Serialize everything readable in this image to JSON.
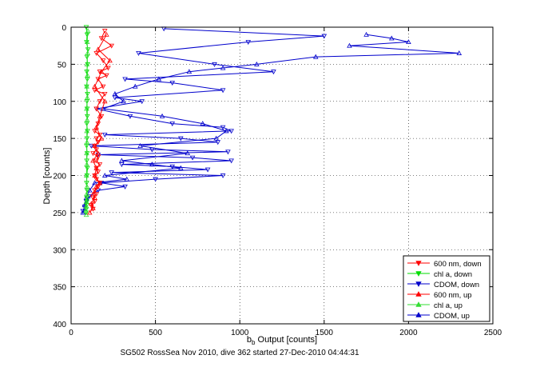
{
  "chart_data": {
    "type": "scatter",
    "xlabel_main": "b",
    "xlabel_sub": "b",
    "xlabel_rest": " Output [counts]",
    "ylabel": "Depth [counts]",
    "xlim": [
      0,
      2500
    ],
    "ylim": [
      0,
      400
    ],
    "y_reversed": true,
    "grid": "dotted",
    "legend_position": "bottom-right",
    "x_ticks": [
      "0",
      "500",
      "1000",
      "1500",
      "2000",
      "2500"
    ],
    "y_ticks": [
      "0",
      "50",
      "100",
      "150",
      "200",
      "250",
      "300",
      "350",
      "400"
    ],
    "footer": "SG502 RossSea Nov 2010, dive 362 started 27-Dec-2010 04:44:31",
    "series": [
      {
        "name": "600 nm, down",
        "color": "#ff0000",
        "marker": "triangle-down",
        "x": [
          200,
          180,
          240,
          150,
          190,
          220,
          170,
          210,
          160,
          190,
          140,
          200,
          170,
          150,
          180,
          160,
          140,
          170,
          150,
          160,
          140,
          150,
          130,
          160,
          150,
          170,
          150,
          160,
          140,
          150,
          170,
          160,
          140,
          150,
          130,
          140,
          120,
          130
        ],
        "y": [
          5,
          15,
          25,
          35,
          45,
          55,
          60,
          65,
          70,
          80,
          85,
          90,
          100,
          110,
          120,
          130,
          140,
          145,
          150,
          155,
          160,
          165,
          170,
          175,
          180,
          185,
          190,
          195,
          200,
          205,
          210,
          215,
          220,
          225,
          230,
          235,
          240,
          245
        ]
      },
      {
        "name": "chl a, down",
        "color": "#00dd00",
        "marker": "triangle-down",
        "x": [
          90,
          95,
          92,
          100,
          94,
          98,
          93,
          96,
          92,
          97,
          94,
          95,
          96,
          93,
          97,
          94,
          92,
          95,
          93,
          96,
          94,
          92,
          95,
          93,
          94,
          92,
          90,
          88
        ],
        "y": [
          0,
          10,
          20,
          30,
          40,
          50,
          60,
          70,
          80,
          90,
          100,
          110,
          120,
          130,
          140,
          150,
          160,
          170,
          180,
          190,
          200,
          210,
          220,
          230,
          235,
          240,
          245,
          250
        ]
      },
      {
        "name": "CDOM, down",
        "color": "#0000cc",
        "marker": "triangle-down",
        "x": [
          550,
          1500,
          1050,
          400,
          850,
          1200,
          320,
          600,
          900,
          260,
          420,
          150,
          350,
          600,
          900,
          950,
          200,
          650,
          870,
          120,
          480,
          930,
          160,
          720,
          950,
          300,
          600,
          810,
          240,
          900,
          500,
          180,
          320,
          160,
          110,
          90,
          80,
          70
        ],
        "y": [
          2,
          12,
          20,
          35,
          50,
          60,
          70,
          75,
          85,
          95,
          100,
          110,
          120,
          130,
          135,
          140,
          145,
          150,
          155,
          160,
          165,
          168,
          172,
          176,
          180,
          185,
          188,
          192,
          196,
          200,
          205,
          210,
          215,
          220,
          228,
          235,
          242,
          248
        ]
      },
      {
        "name": "600 nm, up",
        "color": "#ff0000",
        "marker": "triangle-up",
        "x": [
          210,
          160,
          230,
          180,
          140,
          200,
          170,
          150,
          180,
          140,
          160,
          130,
          150,
          140,
          170,
          150,
          130,
          140,
          120,
          130,
          110
        ],
        "y": [
          10,
          30,
          45,
          60,
          80,
          100,
          120,
          135,
          150,
          160,
          170,
          180,
          190,
          200,
          210,
          215,
          225,
          230,
          238,
          244,
          250
        ]
      },
      {
        "name": "chl a, up",
        "color": "#33dd33",
        "marker": "triangle-up",
        "x": [
          100,
          95,
          98,
          94,
          97,
          93,
          96,
          92,
          95,
          93,
          94,
          92,
          93,
          91,
          94,
          92,
          90,
          89,
          88,
          90
        ],
        "y": [
          5,
          20,
          35,
          50,
          65,
          80,
          95,
          110,
          125,
          140,
          155,
          170,
          185,
          200,
          215,
          225,
          235,
          242,
          248,
          253
        ]
      },
      {
        "name": "CDOM, up",
        "color": "#0000cc",
        "marker": "triangle-up",
        "x": [
          1750,
          1900,
          2000,
          1650,
          2300,
          1450,
          1100,
          900,
          700,
          520,
          380,
          260,
          310,
          190,
          540,
          780,
          920,
          860,
          410,
          690,
          300,
          480,
          650,
          200,
          330,
          140,
          110,
          90,
          80,
          70
        ],
        "y": [
          10,
          15,
          20,
          25,
          35,
          40,
          50,
          55,
          60,
          70,
          80,
          90,
          100,
          110,
          120,
          130,
          140,
          150,
          160,
          170,
          180,
          185,
          190,
          200,
          205,
          210,
          220,
          230,
          240,
          250
        ]
      }
    ]
  }
}
